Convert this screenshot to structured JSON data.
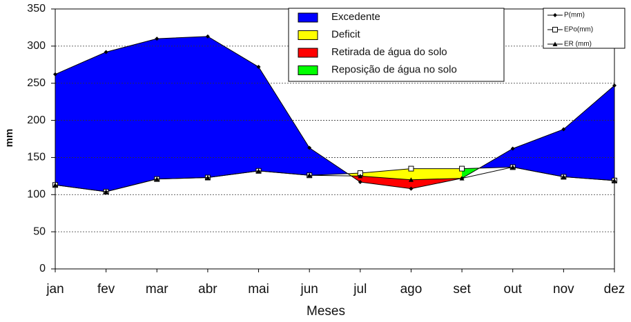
{
  "chart_data": {
    "type": "area",
    "x_label": "Meses",
    "y_label": "mm",
    "categories": [
      "jan",
      "fev",
      "mar",
      "abr",
      "mai",
      "jun",
      "jul",
      "ago",
      "set",
      "out",
      "nov",
      "dez"
    ],
    "series": [
      {
        "name": "P(mm)",
        "color": "#000000",
        "marker": "diamond",
        "values": [
          262,
          292,
          310,
          313,
          272,
          163,
          117,
          108,
          122,
          162,
          188,
          247
        ]
      },
      {
        "name": "EPo(mm)",
        "color": "#000000",
        "marker": "square",
        "values": [
          113,
          104,
          121,
          123,
          132,
          126,
          129,
          135,
          135,
          137,
          124,
          119
        ]
      },
      {
        "name": "ER (mm)",
        "color": "#000000",
        "marker": "triangle",
        "values": [
          113,
          104,
          121,
          123,
          132,
          126,
          125,
          120,
          122,
          137,
          124,
          119
        ]
      }
    ],
    "regions": [
      {
        "name": "Excedente",
        "color": "#0000ff"
      },
      {
        "name": "Deficit",
        "color": "#ffff00"
      },
      {
        "name": "Retirada de água do solo",
        "color": "#ff0000"
      },
      {
        "name": "Reposição de água no solo",
        "color": "#00ff00"
      }
    ],
    "ylim": [
      0,
      350
    ],
    "yticks": [
      0,
      50,
      100,
      150,
      200,
      250,
      300,
      350
    ],
    "grid": true
  }
}
